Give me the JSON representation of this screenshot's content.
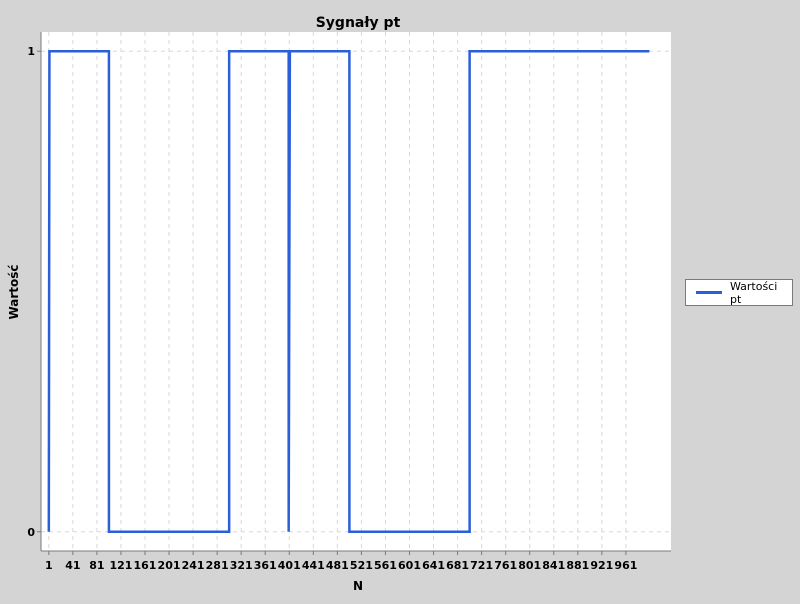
{
  "chart_data": {
    "type": "line",
    "title": "Sygnały pt",
    "xlabel": "N",
    "ylabel": "Wartość",
    "x_ticks": [
      "1",
      "41",
      "81",
      "121",
      "161",
      "201",
      "241",
      "281",
      "321",
      "361",
      "401",
      "441",
      "481",
      "521",
      "561",
      "601",
      "641",
      "681",
      "721",
      "761",
      "801",
      "841",
      "881",
      "921",
      "961"
    ],
    "y_ticks": [
      "0",
      "1"
    ],
    "xlim": [
      -12,
      1036
    ],
    "ylim": [
      -0.04,
      1.04
    ],
    "grid": true,
    "legend_position": "right",
    "series": [
      {
        "name": "Wartości pt",
        "color": "#2b5fd9",
        "step": true,
        "x": [
          1,
          2,
          101,
          101,
          301,
          301,
          400,
          400,
          402,
          501,
          501,
          701,
          701,
          1000
        ],
        "y": [
          0,
          1,
          1,
          0,
          0,
          1,
          1,
          0,
          1,
          1,
          0,
          0,
          1,
          1
        ]
      }
    ]
  },
  "legend": {
    "label": "Wartości pt",
    "color": "#2b5fd9"
  }
}
